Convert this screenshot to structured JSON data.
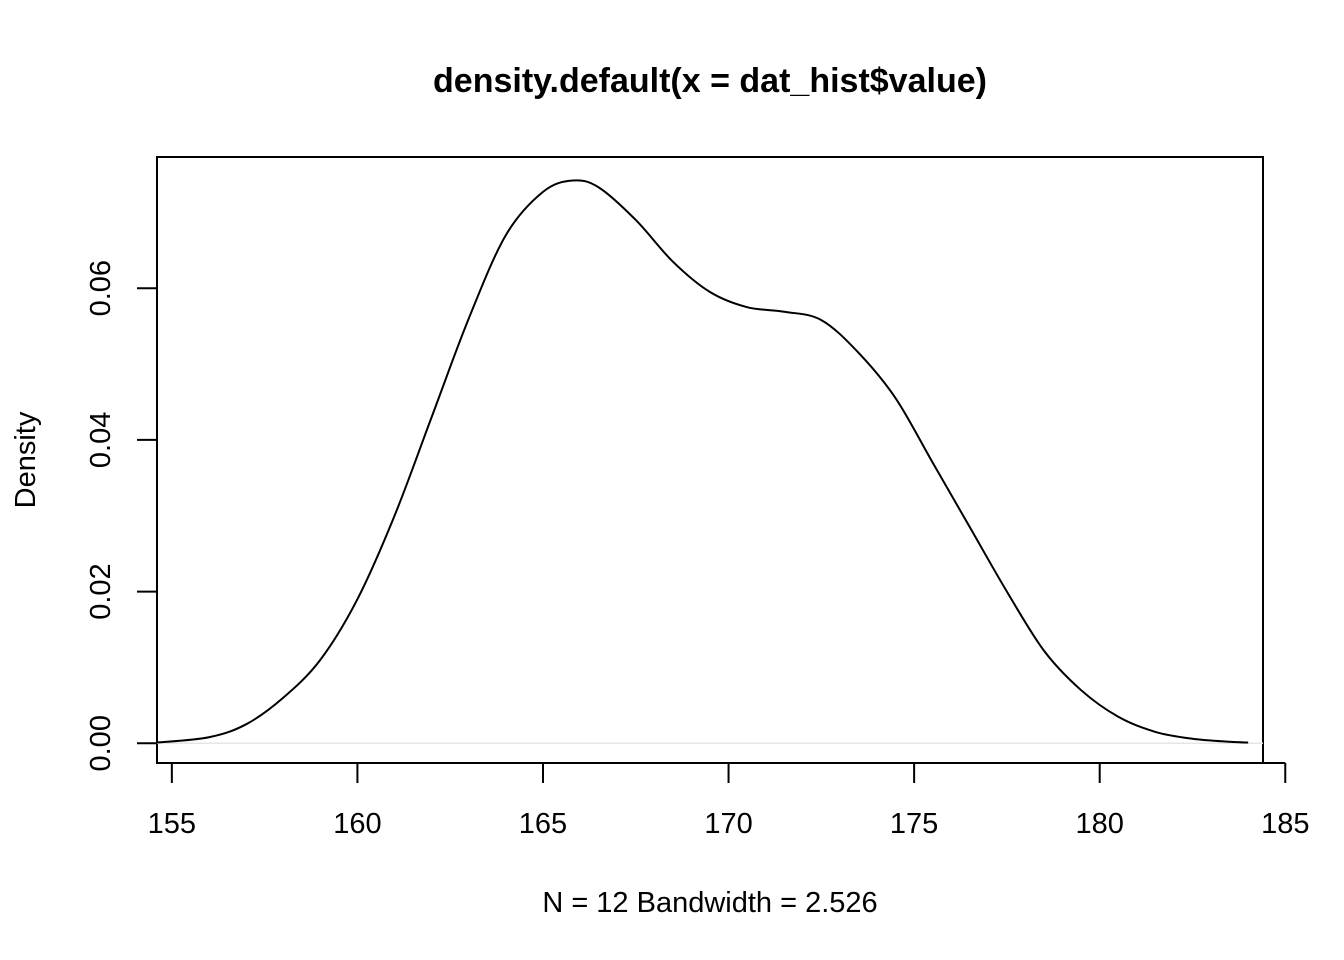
{
  "chart_data": {
    "type": "line",
    "title": "density.default(x = dat_hist$value)",
    "xlabel": "N = 12   Bandwidth = 2.526",
    "ylabel": "Density",
    "xlim": [
      154.6,
      184.4
    ],
    "ylim": [
      -0.0026,
      0.0773
    ],
    "x_ticks": [
      155,
      160,
      165,
      170,
      175,
      180,
      185
    ],
    "y_ticks": [
      0.0,
      0.02,
      0.04,
      0.06
    ],
    "x_tick_labels": [
      "155",
      "160",
      "165",
      "170",
      "175",
      "180",
      "185"
    ],
    "y_tick_labels": [
      "0.00",
      "0.02",
      "0.04",
      "0.06"
    ],
    "grid": false,
    "series": [
      {
        "x": [
          154.6,
          156.0,
          157.0,
          158.0,
          159.0,
          160.0,
          161.0,
          162.0,
          163.0,
          164.0,
          165.0,
          165.8,
          166.5,
          167.5,
          168.5,
          169.5,
          170.5,
          171.5,
          172.5,
          173.5,
          174.5,
          175.5,
          176.5,
          177.5,
          178.5,
          179.5,
          180.5,
          181.5,
          182.5,
          183.5,
          184.0
        ],
        "y": [
          0.0001,
          0.0008,
          0.0025,
          0.006,
          0.011,
          0.019,
          0.03,
          0.043,
          0.056,
          0.067,
          0.0727,
          0.0742,
          0.0733,
          0.069,
          0.0635,
          0.0595,
          0.0575,
          0.0569,
          0.0558,
          0.0515,
          0.0455,
          0.037,
          0.0285,
          0.02,
          0.0122,
          0.007,
          0.0035,
          0.0015,
          0.0006,
          0.0002,
          0.0001
        ]
      }
    ]
  }
}
